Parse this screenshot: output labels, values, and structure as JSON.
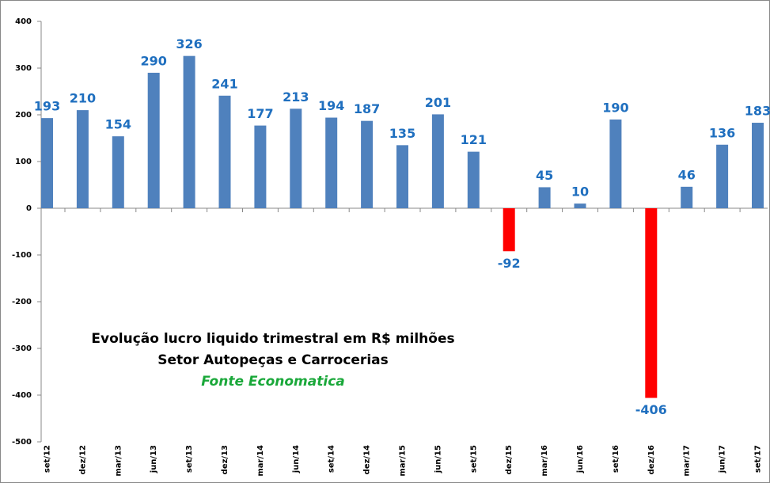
{
  "chart_data": {
    "type": "bar",
    "title": "Evolução lucro liquido trimestral  em R$ milhões",
    "subtitle": "Setor Autopeças e Carrocerias",
    "source": "Fonte Economatica",
    "categories": [
      "set/12",
      "dez/12",
      "mar/13",
      "jun/13",
      "set/13",
      "dez/13",
      "mar/14",
      "jun/14",
      "set/14",
      "dez/14",
      "mar/15",
      "jun/15",
      "set/15",
      "dez/15",
      "mar/16",
      "jun/16",
      "set/16",
      "dez/16",
      "mar/17",
      "jun/17",
      "set/17"
    ],
    "values": [
      193,
      210,
      154,
      290,
      326,
      241,
      177,
      213,
      194,
      187,
      135,
      201,
      121,
      -92,
      45,
      10,
      190,
      -406,
      46,
      136,
      183
    ],
    "color": "#4f81bd",
    "negative_color": "#ff0000",
    "ylim": [
      -500,
      400
    ],
    "yticks": [
      -500,
      -400,
      -300,
      -200,
      -100,
      0,
      100,
      200,
      300,
      400
    ],
    "grid": false
  }
}
